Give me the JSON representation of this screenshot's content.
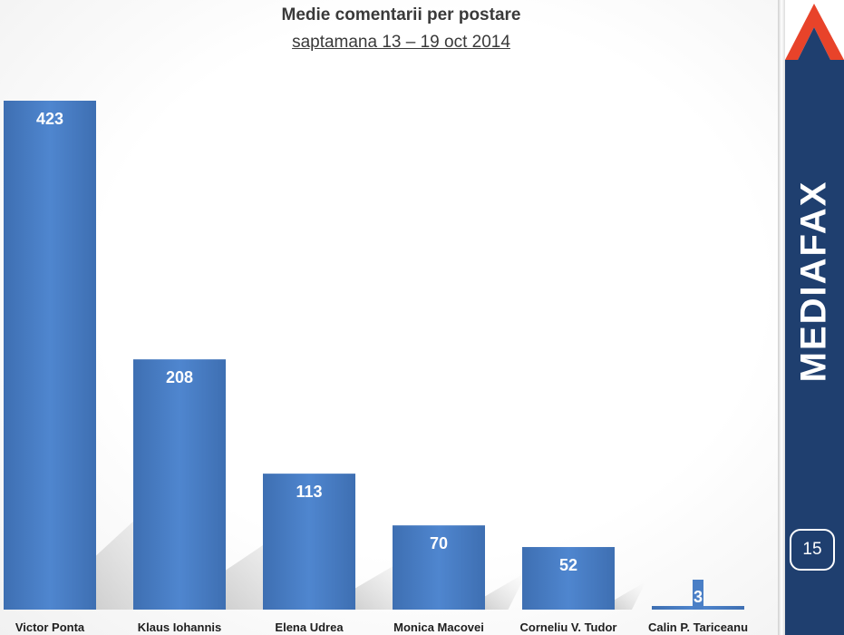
{
  "chart_data": {
    "type": "bar",
    "title": "Medie comentarii per postare",
    "subtitle": "saptamana 13 – 19 oct 2014",
    "categories": [
      "Victor Ponta",
      "Klaus Iohannis",
      "Elena Udrea",
      "Monica Macovei",
      "Corneliu V. Tudor",
      "Calin P. Tariceanu"
    ],
    "values": [
      423,
      208,
      113,
      70,
      52,
      3
    ],
    "bar_color": "#4a7fc6",
    "data_labels": true,
    "grid": false,
    "legend": "none"
  },
  "sidebar": {
    "brand": "MEDIAFAX",
    "page_number": "15",
    "panel_color": "#1f3f6f",
    "logo_color": "#e8432a"
  }
}
